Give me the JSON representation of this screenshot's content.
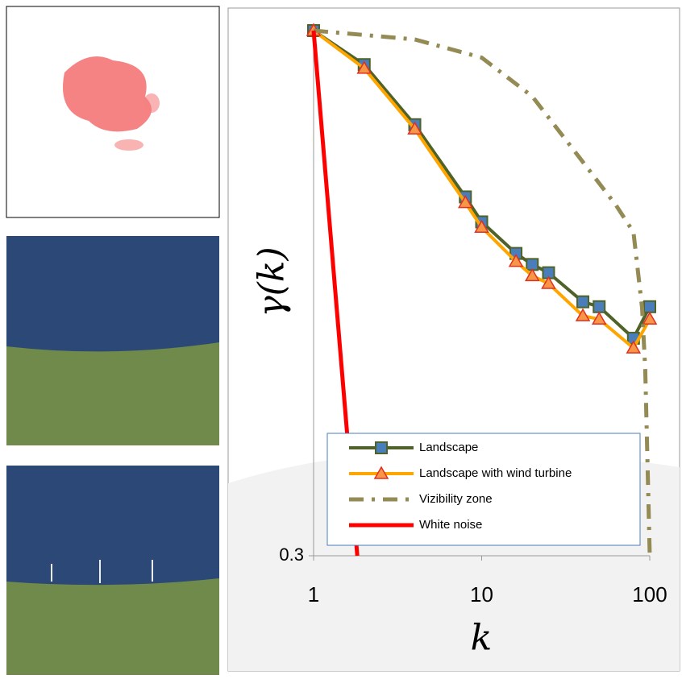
{
  "chart_data": {
    "type": "line",
    "x_label": "k",
    "y_label": "γ(k)",
    "x_log": true,
    "y_log": true,
    "xlim": [
      1,
      100
    ],
    "ylim": [
      0.3,
      1
    ],
    "xticks": [
      1,
      10,
      100
    ],
    "yticks": [
      0.3
    ],
    "legend_position": "lower right",
    "series": [
      {
        "name": "Landscape",
        "color": "#4f6228",
        "marker": "square",
        "marker_color": "#4a7ebb",
        "x": [
          1,
          2,
          4,
          8,
          10,
          16,
          20,
          25,
          40,
          50,
          80,
          100
        ],
        "values": [
          1,
          0.925,
          0.806,
          0.683,
          0.645,
          0.6,
          0.585,
          0.574,
          0.537,
          0.531,
          0.494,
          0.531
        ]
      },
      {
        "name": "Landscape with wind turbine",
        "color": "#ffa500",
        "marker": "triangle",
        "marker_color": "#f79646",
        "x": [
          1,
          2,
          4,
          8,
          10,
          16,
          20,
          25,
          40,
          50,
          80,
          100
        ],
        "values": [
          1,
          0.917,
          0.798,
          0.674,
          0.637,
          0.589,
          0.57,
          0.56,
          0.52,
          0.516,
          0.483,
          0.516
        ]
      },
      {
        "name": "Vizibility zone",
        "color": "#948a54",
        "dash": "dashdot",
        "x": [
          1,
          2,
          4,
          10,
          20,
          40,
          63,
          80,
          90,
          94,
          100
        ],
        "values": [
          1,
          0.99,
          0.98,
          0.94,
          0.86,
          0.74,
          0.67,
          0.63,
          0.53,
          0.46,
          0.3
        ]
      },
      {
        "name": "White noise",
        "color": "#ff0000",
        "x": [
          1,
          1.82
        ],
        "values": [
          1,
          0.3
        ]
      }
    ]
  }
}
